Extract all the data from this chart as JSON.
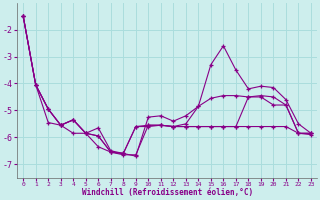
{
  "xlabel": "Windchill (Refroidissement éolien,°C)",
  "background_color": "#cdeeed",
  "grid_color": "#aadddd",
  "line_color": "#880088",
  "x": [
    0,
    1,
    2,
    3,
    4,
    5,
    6,
    7,
    8,
    9,
    10,
    11,
    12,
    13,
    14,
    15,
    16,
    17,
    18,
    19,
    20,
    21,
    22,
    23
  ],
  "series1": [
    -1.5,
    -4.05,
    -4.95,
    -5.55,
    -5.35,
    -5.85,
    -5.65,
    -6.5,
    -6.6,
    -6.7,
    -5.25,
    -5.2,
    -5.4,
    -5.2,
    -4.85,
    -3.3,
    -2.6,
    -3.5,
    -4.2,
    -4.1,
    -4.15,
    -4.6,
    -5.5,
    -5.85
  ],
  "series2": [
    -1.5,
    -4.05,
    -4.95,
    -5.55,
    -5.35,
    -5.85,
    -5.95,
    -6.55,
    -6.6,
    -5.6,
    -5.55,
    -5.55,
    -5.6,
    -5.5,
    -4.85,
    -4.55,
    -4.45,
    -4.45,
    -4.5,
    -4.45,
    -4.5,
    -4.8,
    -5.85,
    -5.85
  ],
  "series3": [
    -1.5,
    -4.05,
    -4.95,
    -5.55,
    -5.35,
    -5.85,
    -5.95,
    -6.55,
    -6.6,
    -5.6,
    -5.6,
    -5.55,
    -5.6,
    -5.6,
    -5.6,
    -5.6,
    -5.6,
    -5.6,
    -4.5,
    -4.5,
    -4.8,
    -4.8,
    -5.85,
    -5.85
  ],
  "series4": [
    -1.5,
    -4.05,
    -5.45,
    -5.55,
    -5.85,
    -5.85,
    -6.35,
    -6.55,
    -6.65,
    -6.65,
    -5.55,
    -5.55,
    -5.6,
    -5.6,
    -5.6,
    -5.6,
    -5.6,
    -5.6,
    -5.6,
    -5.6,
    -5.6,
    -5.6,
    -5.85,
    -5.9
  ],
  "ylim": [
    -7.5,
    -1.0
  ],
  "xlim": [
    -0.5,
    23.5
  ],
  "yticks": [
    -7,
    -6,
    -5,
    -4,
    -3,
    -2
  ],
  "xticks": [
    0,
    1,
    2,
    3,
    4,
    5,
    6,
    7,
    8,
    9,
    10,
    11,
    12,
    13,
    14,
    15,
    16,
    17,
    18,
    19,
    20,
    21,
    22,
    23
  ]
}
